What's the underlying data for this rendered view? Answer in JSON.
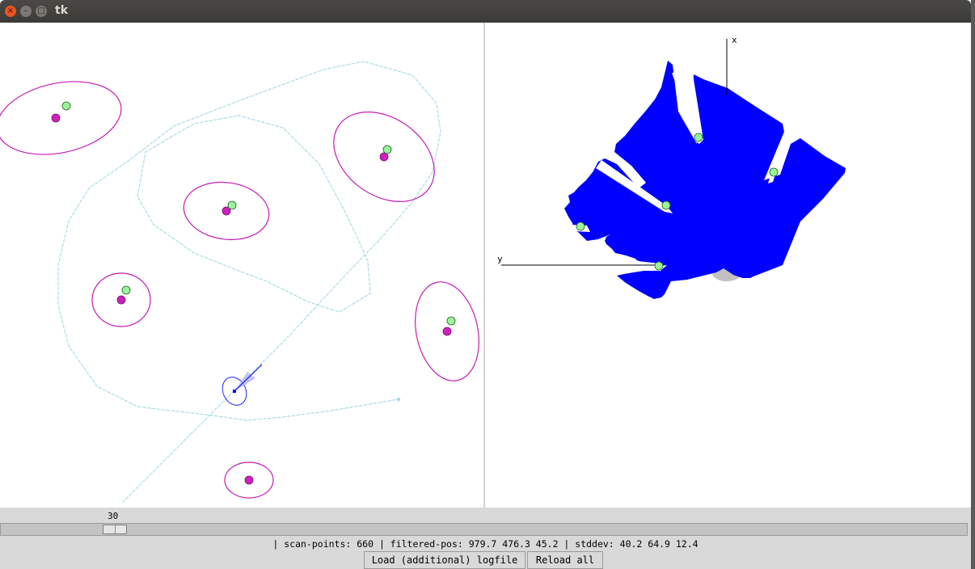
{
  "window": {
    "title": "tk",
    "close_glyph": "×",
    "minimize_glyph": "–",
    "maximize_glyph": "□"
  },
  "colors": {
    "trajectory": "#a9d8e6",
    "landmark_ellipse": "#c21cb4",
    "landmark_estimate": "#cc22bb",
    "landmark_observed": "#98f598",
    "scan_fill": "#0000ff",
    "robot_shadow": "#c0c0c0"
  },
  "map_view": {
    "landmarks": [
      {
        "estimate": "magenta",
        "observed": "green"
      },
      {
        "estimate": "magenta",
        "observed": "green"
      },
      {
        "estimate": "magenta",
        "observed": "green"
      },
      {
        "estimate": "magenta",
        "observed": "green"
      },
      {
        "estimate": "magenta",
        "observed": "green"
      },
      {
        "estimate": "magenta",
        "observed": "none"
      }
    ]
  },
  "scan_view": {
    "x_axis_label": "x",
    "y_axis_label": "y"
  },
  "slider": {
    "value": "30"
  },
  "status": {
    "text": "| scan-points: 660 | filtered-pos: 979.7 476.3 45.2 | stddev: 40.2 64.9 12.4"
  },
  "buttons": {
    "load_label": "Load (additional) logfile",
    "reload_label": "Reload all"
  }
}
